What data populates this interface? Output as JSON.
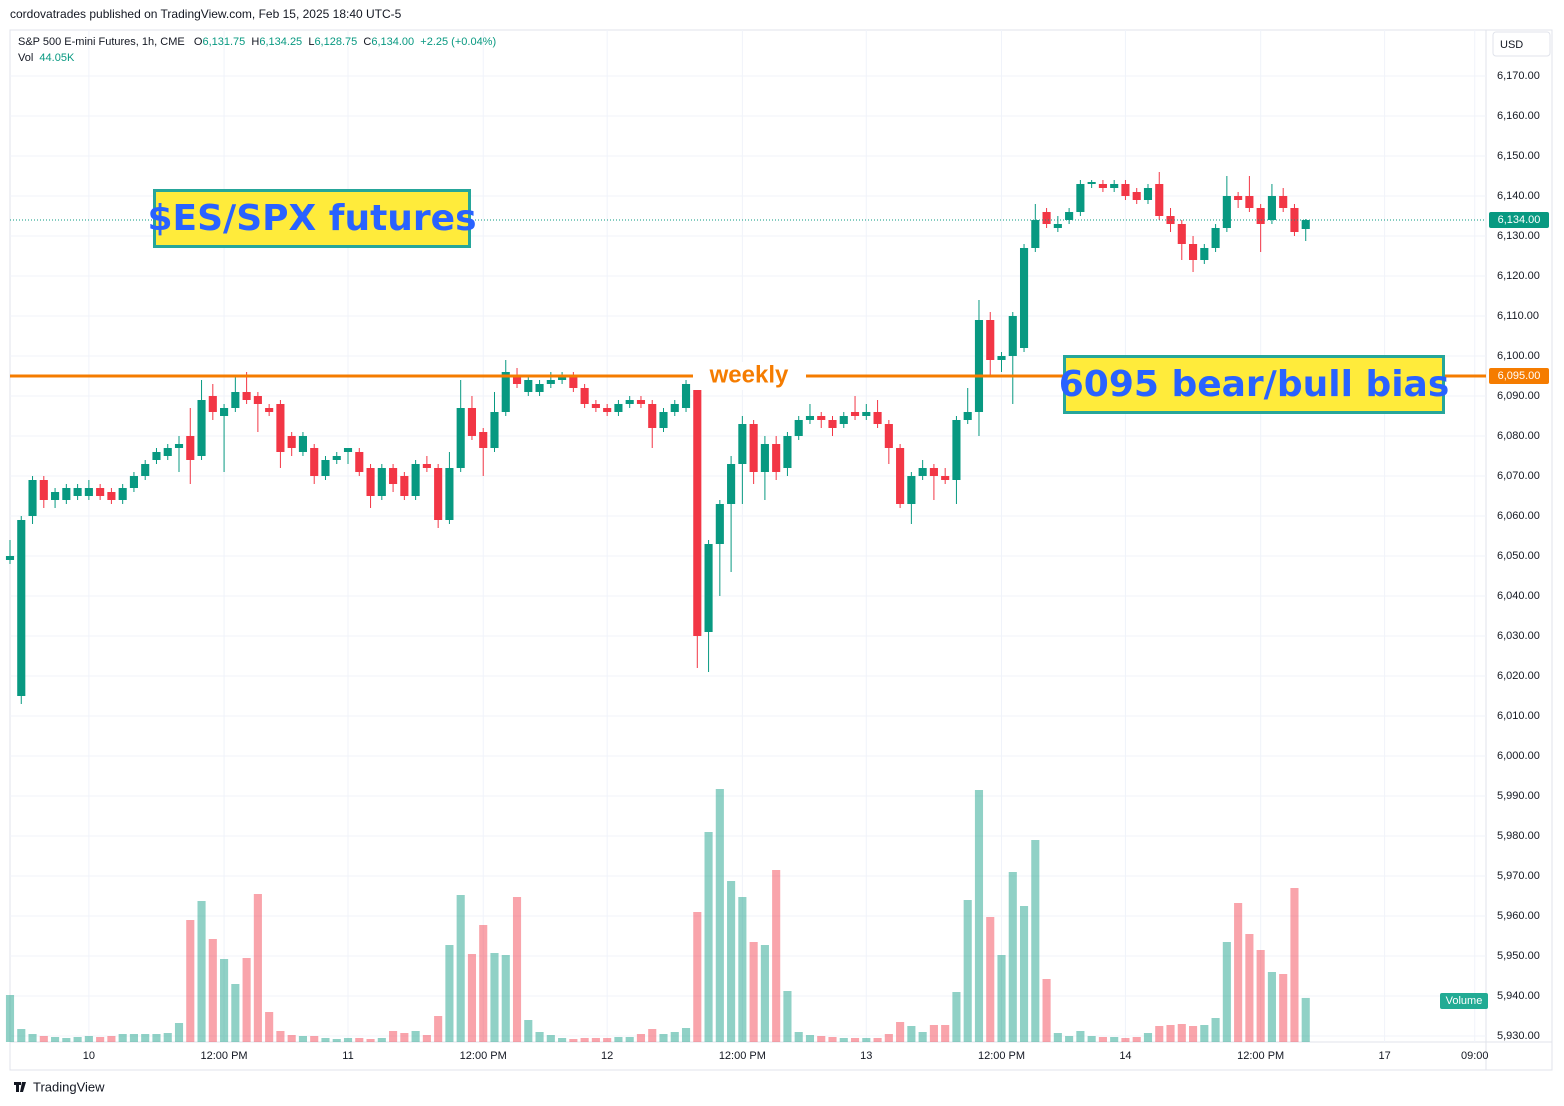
{
  "header": "cordovatrades published on TradingView.com, Feb 15, 2025 18:40 UTC-5",
  "footer": "TradingView",
  "currency": "USD",
  "chart_data": {
    "type": "candlestick",
    "title": "S&P 500 E-mini Futures, 1h, CME",
    "ohlc_legend": [
      {
        "key": "O",
        "value": "6,131.75"
      },
      {
        "key": "H",
        "value": "6,134.25"
      },
      {
        "key": "L",
        "value": "6,128.75"
      },
      {
        "key": "C",
        "value": "6,134.00"
      }
    ],
    "change": "+2.25 (+0.04%)",
    "volume_legend": {
      "key": "Vol",
      "value": "44.05K"
    },
    "volume_label": "Volume",
    "up_color": "#089981",
    "down_color": "#f23645",
    "grid": true,
    "open": [
      6049,
      6015,
      6060,
      6069,
      6064,
      6064,
      6065,
      6065,
      6067,
      6066,
      6064,
      6067,
      6070,
      6074,
      6075,
      6077,
      6080,
      6075,
      6090,
      6085,
      6087,
      6091,
      6090,
      6087,
      6088,
      6080,
      6076,
      6077,
      6070,
      6074,
      6076,
      6076,
      6072,
      6065,
      6072,
      6070,
      6065,
      6073,
      6072,
      6059,
      6072,
      6087,
      6081,
      6077,
      6086,
      6095,
      6091,
      6091,
      6093,
      6094,
      6095,
      6092,
      6088,
      6087,
      6086,
      6088,
      6089,
      6088,
      6082,
      6086,
      6087,
      6093,
      6031,
      6053,
      6063,
      6073,
      6083,
      6071,
      6078,
      6072,
      6080,
      6084,
      6085,
      6084,
      6083,
      6086,
      6085,
      6086,
      6083,
      6077,
      6063,
      6070,
      6072,
      6070,
      6069,
      6084,
      6086,
      6109,
      6099,
      6100,
      6102,
      6127,
      6136,
      6132,
      6134,
      6136,
      6143,
      6143,
      6142,
      6143,
      6141,
      6139,
      6143,
      6135,
      6133,
      6128,
      6124,
      6127,
      6132,
      6140,
      6140,
      6137,
      6134,
      6140,
      6137,
      6131.75
    ],
    "high": [
      6054,
      6060,
      6070,
      6070,
      6067,
      6068,
      6068,
      6069,
      6068,
      6067,
      6068,
      6071,
      6074,
      6077,
      6078,
      6080,
      6087,
      6094,
      6093,
      6088,
      6095,
      6096,
      6091,
      6088,
      6089,
      6081,
      6081,
      6078,
      6075,
      6076,
      6077,
      6077,
      6073,
      6073,
      6073,
      6071,
      6074,
      6075,
      6073,
      6076,
      6094,
      6090,
      6082,
      6091,
      6099,
      6097,
      6095,
      6094,
      6096,
      6096,
      6096,
      6093,
      6089,
      6088,
      6089,
      6090,
      6090,
      6089,
      6087,
      6089,
      6094,
      6096,
      6054,
      6064,
      6075,
      6085,
      6084,
      6080,
      6080,
      6081,
      6085,
      6088,
      6086,
      6085,
      6086,
      6090,
      6088,
      6089,
      6084,
      6078,
      6071,
      6074,
      6073,
      6072,
      6085,
      6092,
      6114,
      6111,
      6101,
      6111,
      6128,
      6138,
      6137,
      6135,
      6137,
      6144,
      6144,
      6144,
      6144,
      6144,
      6142,
      6143,
      6146,
      6137,
      6134,
      6130,
      6128,
      6133,
      6145,
      6141,
      6145,
      6138,
      6143,
      6142,
      6138,
      6134.25
    ],
    "low": [
      6048,
      6013,
      6058,
      6062,
      6062,
      6063,
      6064,
      6064,
      6064,
      6063,
      6063,
      6066,
      6069,
      6073,
      6074,
      6071,
      6068,
      6074,
      6084,
      6071,
      6086,
      6088,
      6081,
      6085,
      6072,
      6075,
      6075,
      6068,
      6069,
      6073,
      6073,
      6070,
      6062,
      6064,
      6066,
      6064,
      6064,
      6071,
      6057,
      6058,
      6071,
      6079,
      6070,
      6076,
      6085,
      6092,
      6090,
      6090,
      6092,
      6093,
      6091,
      6087,
      6086,
      6085,
      6085,
      6087,
      6087,
      6077,
      6081,
      6085,
      6086,
      6022,
      6021,
      6040,
      6046,
      6063,
      6068,
      6064,
      6069,
      6070,
      6079,
      6083,
      6082,
      6080,
      6082,
      6084,
      6084,
      6082,
      6073,
      6062,
      6058,
      6069,
      6064,
      6068,
      6063,
      6083,
      6080,
      6095,
      6096,
      6088,
      6101,
      6126,
      6132,
      6131,
      6133,
      6135,
      6142,
      6141,
      6141,
      6139,
      6138,
      6138,
      6134,
      6131,
      6124,
      6121,
      6123,
      6126,
      6131,
      6137,
      6136,
      6126,
      6133,
      6136,
      6130,
      6128.75
    ],
    "close": [
      6050,
      6059,
      6069,
      6064,
      6066,
      6067,
      6067,
      6067,
      6065,
      6064,
      6067,
      6070,
      6073,
      6076,
      6077,
      6078,
      6074,
      6089,
      6086,
      6087,
      6091,
      6089,
      6088,
      6086,
      6076,
      6077,
      6080,
      6070,
      6074,
      6075,
      6077,
      6071,
      6065,
      6072,
      6068,
      6065,
      6073,
      6072,
      6059,
      6072,
      6087,
      6080,
      6077,
      6086,
      6096,
      6093,
      6094,
      6093,
      6094,
      6095,
      6092,
      6088,
      6087,
      6086,
      6088,
      6089,
      6088,
      6082,
      6086,
      6088,
      6093,
      6030,
      6053,
      6063,
      6073,
      6083,
      6071,
      6078,
      6071,
      6080,
      6084,
      6085,
      6084,
      6082,
      6085,
      6085,
      6086,
      6083,
      6077,
      6063,
      6070,
      6072,
      6070,
      6069,
      6084,
      6086,
      6109,
      6099,
      6100,
      6110,
      6127,
      6134,
      6133,
      6133,
      6136,
      6143,
      6143.5,
      6142,
      6143,
      6140,
      6139,
      6142,
      6135,
      6133,
      6128,
      6124,
      6127,
      6132,
      6140,
      6139,
      6137,
      6133,
      6140,
      6137,
      6131,
      6134
    ],
    "volume": [
      47,
      13,
      8,
      6,
      5,
      4,
      5,
      6,
      5,
      6,
      8,
      8,
      8,
      8,
      9,
      19,
      122,
      141,
      103,
      83,
      58,
      84,
      148,
      30,
      11,
      7,
      6,
      6,
      4,
      3,
      4,
      4,
      3,
      4,
      11,
      9,
      11,
      7,
      26,
      97,
      147,
      88,
      117,
      89,
      87,
      145,
      22,
      10,
      7,
      4,
      3,
      4,
      4,
      4,
      5,
      5,
      8,
      13,
      8,
      10,
      14,
      130,
      210,
      253,
      161,
      145,
      100,
      97,
      172,
      51,
      10,
      7,
      6,
      5,
      4,
      4,
      4,
      4,
      8,
      20,
      16,
      10,
      17,
      17,
      50,
      142,
      252,
      125,
      87,
      170,
      136,
      202,
      63,
      9,
      6,
      11,
      6,
      5,
      5,
      4,
      5,
      9,
      16,
      17,
      18,
      16,
      17,
      24,
      100,
      139,
      108,
      92,
      70,
      68,
      154,
      44.05
    ],
    "xlim": [
      0,
      131
    ],
    "xticks": [
      {
        "value": 7,
        "label": "10"
      },
      {
        "value": 19,
        "label": "12:00 PM"
      },
      {
        "value": 30,
        "label": "11"
      },
      {
        "value": 42,
        "label": "12:00 PM"
      },
      {
        "value": 53,
        "label": "12"
      },
      {
        "value": 65,
        "label": "12:00 PM"
      },
      {
        "value": 76,
        "label": "13"
      },
      {
        "value": 88,
        "label": "12:00 PM"
      },
      {
        "value": 99,
        "label": "14"
      },
      {
        "value": 111,
        "label": "12:00 PM"
      },
      {
        "value": 122,
        "label": "17"
      },
      {
        "value": 130,
        "label": "09:00"
      }
    ],
    "ylim": [
      5928.5,
      6181.5
    ],
    "yticks": [
      {
        "value": 5930,
        "label": "5,930.00"
      },
      {
        "value": 5940,
        "label": "5,940.00"
      },
      {
        "value": 5950,
        "label": "5,950.00"
      },
      {
        "value": 5960,
        "label": "5,960.00"
      },
      {
        "value": 5970,
        "label": "5,970.00"
      },
      {
        "value": 5980,
        "label": "5,980.00"
      },
      {
        "value": 5990,
        "label": "5,990.00"
      },
      {
        "value": 6000,
        "label": "6,000.00"
      },
      {
        "value": 6010,
        "label": "6,010.00"
      },
      {
        "value": 6020,
        "label": "6,020.00"
      },
      {
        "value": 6030,
        "label": "6,030.00"
      },
      {
        "value": 6040,
        "label": "6,040.00"
      },
      {
        "value": 6050,
        "label": "6,050.00"
      },
      {
        "value": 6060,
        "label": "6,060.00"
      },
      {
        "value": 6070,
        "label": "6,070.00"
      },
      {
        "value": 6080,
        "label": "6,080.00"
      },
      {
        "value": 6090,
        "label": "6,090.00"
      },
      {
        "value": 6100,
        "label": "6,100.00"
      },
      {
        "value": 6110,
        "label": "6,110.00"
      },
      {
        "value": 6120,
        "label": "6,120.00"
      },
      {
        "value": 6130,
        "label": "6,130.00"
      },
      {
        "value": 6140,
        "label": "6,140.00"
      },
      {
        "value": 6150,
        "label": "6,150.00"
      },
      {
        "value": 6160,
        "label": "6,160.00"
      },
      {
        "value": 6170,
        "label": "6,170.00"
      }
    ],
    "lines": [
      {
        "value": 6095,
        "label": "6,095.00",
        "color": "#f57c00",
        "style": "solid",
        "annotation": "weekly"
      },
      {
        "value": 6134,
        "label": "6,134.00",
        "color": "#089981",
        "style": "dotted"
      }
    ],
    "annotations": [
      "$ES/SPX futures",
      "6095 bear/bull bias"
    ]
  }
}
